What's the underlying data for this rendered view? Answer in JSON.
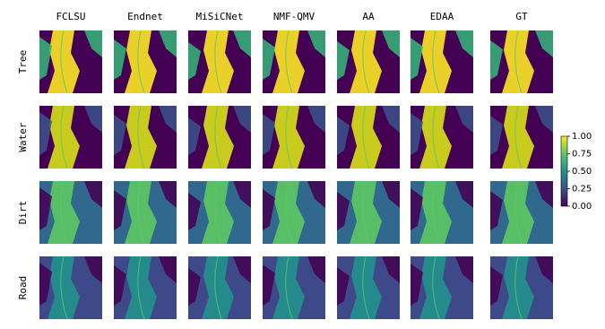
{
  "chart_data": {
    "type": "image-grid",
    "columns": [
      "FCLSU",
      "Endnet",
      "MiSiCNet",
      "NMF-QMV",
      "AA",
      "EDAA",
      "GT"
    ],
    "rows": [
      "Tree",
      "Water",
      "Dirt",
      "Road"
    ],
    "colorbar": {
      "lim": [
        0,
        1
      ],
      "ticks": [
        {
          "value": 0,
          "label": "0.00"
        },
        {
          "value": 0.25,
          "label": "0.25"
        },
        {
          "value": 0.5,
          "label": "0.50"
        },
        {
          "value": 0.75,
          "label": "0.75"
        },
        {
          "value": 1,
          "label": "1.00"
        }
      ]
    }
  }
}
